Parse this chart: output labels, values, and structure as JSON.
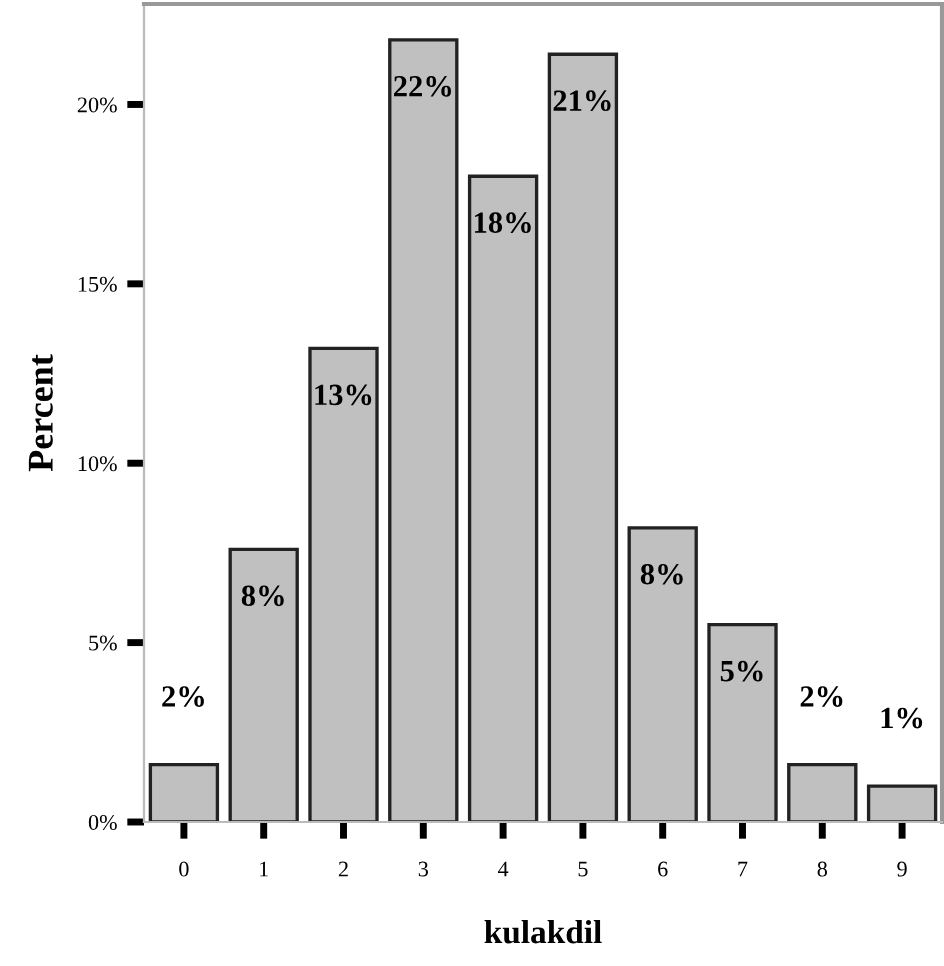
{
  "chart_data": {
    "type": "bar",
    "xlabel": "kulakdil",
    "ylabel": "Percent",
    "categories": [
      "0",
      "1",
      "2",
      "3",
      "4",
      "5",
      "6",
      "7",
      "8",
      "9"
    ],
    "values": [
      1.6,
      7.6,
      13.2,
      21.8,
      18.0,
      21.4,
      8.2,
      5.5,
      1.6,
      1.0
    ],
    "value_labels": [
      "2%",
      "8%",
      "13%",
      "22%",
      "18%",
      "21%",
      "8%",
      "5%",
      "2%",
      "1%"
    ],
    "color": "#c0c0c0",
    "ylim": [
      0,
      22.8
    ],
    "yticks": [
      {
        "value": 0,
        "label": "0%"
      },
      {
        "value": 5,
        "label": "5%"
      },
      {
        "value": 10,
        "label": "10%"
      },
      {
        "value": 15,
        "label": "15%"
      },
      {
        "value": 20,
        "label": "20%"
      }
    ],
    "grid": false
  }
}
